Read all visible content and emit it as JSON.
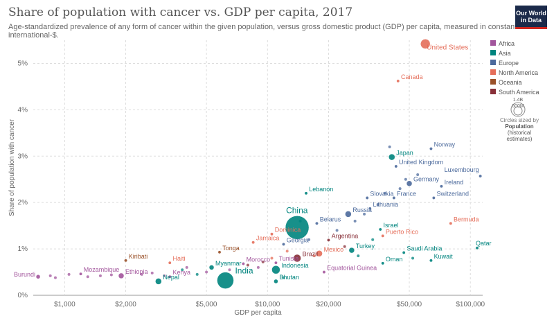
{
  "title": "Share of population with cancer vs. GDP per capita, 2017",
  "subtitle": "Age-standardized prevalence of any form of cancer within the given population, versus gross domestic product (GDP) per capita, measured in constant international-$.",
  "logo": {
    "line1": "Our World",
    "line2": "in Data"
  },
  "size_legend": {
    "large": "1.4B",
    "small": "600M",
    "caption1": "Circles sized by",
    "caption2": "Population",
    "caption3": "(historical",
    "caption4": "estimates)"
  },
  "colors": {
    "Africa": "#a2559c",
    "Asia": "#00847e",
    "Europe": "#4c6a9c",
    "North America": "#e56e5a",
    "Oceania": "#9a5129",
    "South America": "#883039"
  },
  "chart_data": {
    "type": "scatter",
    "title": "Share of population with cancer vs. GDP per capita, 2017",
    "xlabel": "GDP per capita",
    "ylabel": "Share of population with cancer",
    "xscale": "log",
    "xlim": [
      700,
      115000
    ],
    "ylim": [
      0,
      5.5
    ],
    "x_ticks": [
      1000,
      2000,
      5000,
      10000,
      20000,
      50000,
      100000
    ],
    "x_tick_labels": [
      "$1,000",
      "$2,000",
      "$5,000",
      "$10,000",
      "$20,000",
      "$50,000",
      "$100,000"
    ],
    "y_ticks": [
      0,
      1,
      2,
      3,
      4,
      5
    ],
    "y_tick_labels": [
      "0%",
      "1%",
      "2%",
      "3%",
      "4%",
      "5%"
    ],
    "grid": true,
    "legend_position": "right",
    "legend": [
      "Africa",
      "Asia",
      "Europe",
      "North America",
      "Oceania",
      "South America"
    ],
    "labeled_points": [
      {
        "name": "United States",
        "x": 60000,
        "y": 5.42,
        "region": "North America"
      },
      {
        "name": "Canada",
        "x": 44000,
        "y": 4.62,
        "region": "North America"
      },
      {
        "name": "Norway",
        "x": 64000,
        "y": 3.16,
        "region": "Europe"
      },
      {
        "name": "Japan",
        "x": 41000,
        "y": 2.98,
        "region": "Asia"
      },
      {
        "name": "United Kingdom",
        "x": 43000,
        "y": 2.78,
        "region": "Europe"
      },
      {
        "name": "Luxembourg",
        "x": 112000,
        "y": 2.57,
        "region": "Europe"
      },
      {
        "name": "Germany",
        "x": 50000,
        "y": 2.41,
        "region": "Europe"
      },
      {
        "name": "Ireland",
        "x": 72000,
        "y": 2.35,
        "region": "Europe"
      },
      {
        "name": "Lebanon",
        "x": 15500,
        "y": 2.2,
        "region": "Asia"
      },
      {
        "name": "Slovakia",
        "x": 31000,
        "y": 2.1,
        "region": "Europe"
      },
      {
        "name": "France",
        "x": 42000,
        "y": 2.1,
        "region": "Europe"
      },
      {
        "name": "Switzerland",
        "x": 66000,
        "y": 2.1,
        "region": "Europe"
      },
      {
        "name": "Lithuania",
        "x": 32000,
        "y": 1.87,
        "region": "Europe"
      },
      {
        "name": "Russia",
        "x": 25000,
        "y": 1.75,
        "region": "Europe"
      },
      {
        "name": "China",
        "x": 14000,
        "y": 1.46,
        "region": "Asia"
      },
      {
        "name": "Belarus",
        "x": 17500,
        "y": 1.55,
        "region": "Europe"
      },
      {
        "name": "Bermuda",
        "x": 80000,
        "y": 1.55,
        "region": "North America"
      },
      {
        "name": "Israel",
        "x": 36000,
        "y": 1.42,
        "region": "Asia"
      },
      {
        "name": "Dominica",
        "x": 10500,
        "y": 1.32,
        "region": "North America"
      },
      {
        "name": "Puerto Rico",
        "x": 37000,
        "y": 1.28,
        "region": "North America"
      },
      {
        "name": "Argentina",
        "x": 20000,
        "y": 1.19,
        "region": "South America"
      },
      {
        "name": "Jamaica",
        "x": 8500,
        "y": 1.14,
        "region": "North America"
      },
      {
        "name": "Georgia",
        "x": 12000,
        "y": 1.1,
        "region": "Europe"
      },
      {
        "name": "Tonga",
        "x": 5800,
        "y": 0.93,
        "region": "Oceania"
      },
      {
        "name": "Qatar",
        "x": 108000,
        "y": 1.02,
        "region": "Asia"
      },
      {
        "name": "Turkey",
        "x": 26000,
        "y": 0.97,
        "region": "Asia"
      },
      {
        "name": "Mexico",
        "x": 18000,
        "y": 0.9,
        "region": "North America"
      },
      {
        "name": "Saudi Arabia",
        "x": 47000,
        "y": 0.92,
        "region": "Asia"
      },
      {
        "name": "Brazil",
        "x": 14000,
        "y": 0.8,
        "region": "South America"
      },
      {
        "name": "Kuwait",
        "x": 64000,
        "y": 0.75,
        "region": "Asia"
      },
      {
        "name": "Tunisia",
        "x": 11000,
        "y": 0.7,
        "region": "Africa"
      },
      {
        "name": "Haiti",
        "x": 3300,
        "y": 0.7,
        "region": "North America"
      },
      {
        "name": "Kiribati",
        "x": 2000,
        "y": 0.75,
        "region": "Oceania"
      },
      {
        "name": "Morocco",
        "x": 7600,
        "y": 0.68,
        "region": "Africa"
      },
      {
        "name": "Oman",
        "x": 37000,
        "y": 0.69,
        "region": "Asia"
      },
      {
        "name": "Myanmar",
        "x": 5300,
        "y": 0.6,
        "region": "Asia"
      },
      {
        "name": "Equatorial Guinea",
        "x": 19000,
        "y": 0.5,
        "region": "Africa"
      },
      {
        "name": "Indonesia",
        "x": 11000,
        "y": 0.55,
        "region": "Asia"
      },
      {
        "name": "Mozambique",
        "x": 1200,
        "y": 0.46,
        "region": "Africa"
      },
      {
        "name": "Ethiopia",
        "x": 1900,
        "y": 0.42,
        "region": "Africa"
      },
      {
        "name": "Kenya",
        "x": 3300,
        "y": 0.4,
        "region": "Africa"
      },
      {
        "name": "Burundi",
        "x": 740,
        "y": 0.4,
        "region": "Africa"
      },
      {
        "name": "India",
        "x": 6200,
        "y": 0.32,
        "region": "Asia"
      },
      {
        "name": "Nepal",
        "x": 2900,
        "y": 0.3,
        "region": "Asia"
      },
      {
        "name": "Bhutan",
        "x": 11000,
        "y": 0.3,
        "region": "Asia"
      }
    ],
    "unlabeled_points": [
      {
        "x": 12000,
        "y": 0.38,
        "region": "Asia"
      },
      {
        "x": 9000,
        "y": 0.6,
        "region": "Africa"
      },
      {
        "x": 4500,
        "y": 0.45,
        "region": "Asia"
      },
      {
        "x": 5000,
        "y": 0.5,
        "region": "Africa"
      },
      {
        "x": 3800,
        "y": 0.55,
        "region": "Asia"
      },
      {
        "x": 2700,
        "y": 0.48,
        "region": "Africa"
      },
      {
        "x": 2400,
        "y": 0.45,
        "region": "Africa"
      },
      {
        "x": 1500,
        "y": 0.42,
        "region": "Africa"
      },
      {
        "x": 1050,
        "y": 0.45,
        "region": "Africa"
      },
      {
        "x": 900,
        "y": 0.38,
        "region": "Africa"
      },
      {
        "x": 850,
        "y": 0.42,
        "region": "Africa"
      },
      {
        "x": 1300,
        "y": 0.4,
        "region": "Africa"
      },
      {
        "x": 1700,
        "y": 0.44,
        "region": "Africa"
      },
      {
        "x": 3100,
        "y": 0.42,
        "region": "Africa"
      },
      {
        "x": 4000,
        "y": 0.6,
        "region": "Africa"
      },
      {
        "x": 6500,
        "y": 0.55,
        "region": "Africa"
      },
      {
        "x": 8000,
        "y": 0.65,
        "region": "South America"
      },
      {
        "x": 9500,
        "y": 0.72,
        "region": "South America"
      },
      {
        "x": 10500,
        "y": 0.8,
        "region": "North America"
      },
      {
        "x": 12500,
        "y": 0.95,
        "region": "North America"
      },
      {
        "x": 16000,
        "y": 1.2,
        "region": "Europe"
      },
      {
        "x": 22000,
        "y": 1.4,
        "region": "Europe"
      },
      {
        "x": 27000,
        "y": 1.6,
        "region": "Europe"
      },
      {
        "x": 30000,
        "y": 1.75,
        "region": "Europe"
      },
      {
        "x": 35000,
        "y": 1.95,
        "region": "Europe"
      },
      {
        "x": 38000,
        "y": 2.2,
        "region": "Europe"
      },
      {
        "x": 45000,
        "y": 2.3,
        "region": "Europe"
      },
      {
        "x": 48000,
        "y": 2.5,
        "region": "Europe"
      },
      {
        "x": 55000,
        "y": 2.6,
        "region": "Europe"
      },
      {
        "x": 40000,
        "y": 3.2,
        "region": "Europe"
      },
      {
        "x": 33000,
        "y": 1.2,
        "region": "Asia"
      },
      {
        "x": 28000,
        "y": 0.85,
        "region": "Asia"
      },
      {
        "x": 52000,
        "y": 0.8,
        "region": "Asia"
      },
      {
        "x": 24000,
        "y": 1.05,
        "region": "South America"
      },
      {
        "x": 14500,
        "y": 1.6,
        "region": "Asia"
      },
      {
        "x": 17000,
        "y": 0.85,
        "region": "North America"
      }
    ]
  }
}
